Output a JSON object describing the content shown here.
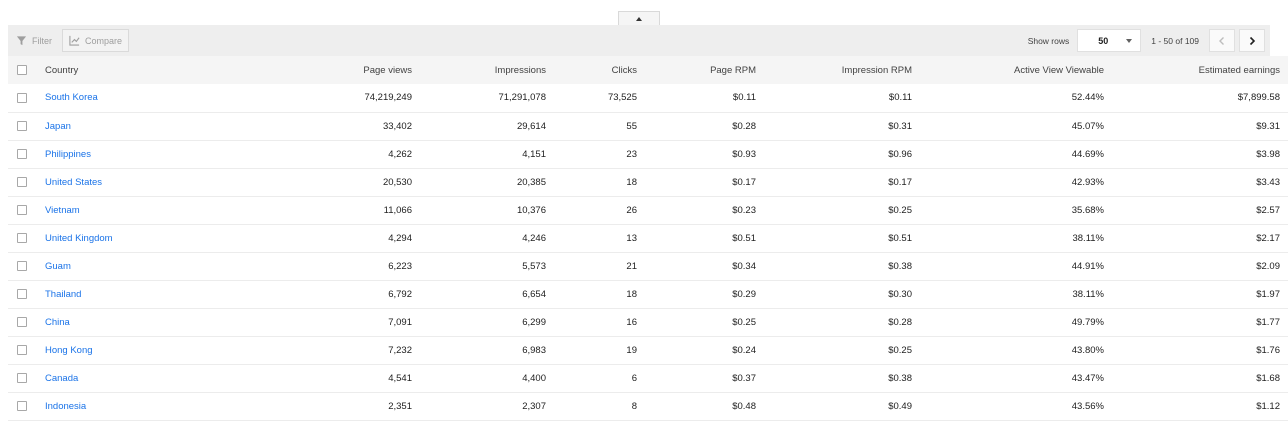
{
  "toolbar": {
    "filter_label": "Filter",
    "compare_label": "Compare",
    "show_rows_label": "Show rows",
    "rows_value": "50",
    "page_range": "1 - 50 of 109"
  },
  "table": {
    "columns": [
      "Country",
      "Page views",
      "Impressions",
      "Clicks",
      "Page RPM",
      "Impression RPM",
      "Active View Viewable",
      "Estimated earnings"
    ],
    "rows": [
      {
        "country": "South Korea",
        "page_views": "74,219,249",
        "impressions": "71,291,078",
        "clicks": "73,525",
        "page_rpm": "$0.11",
        "impression_rpm": "$0.11",
        "active_view": "52.44%",
        "earnings": "$7,899.58"
      },
      {
        "country": "Japan",
        "page_views": "33,402",
        "impressions": "29,614",
        "clicks": "55",
        "page_rpm": "$0.28",
        "impression_rpm": "$0.31",
        "active_view": "45.07%",
        "earnings": "$9.31"
      },
      {
        "country": "Philippines",
        "page_views": "4,262",
        "impressions": "4,151",
        "clicks": "23",
        "page_rpm": "$0.93",
        "impression_rpm": "$0.96",
        "active_view": "44.69%",
        "earnings": "$3.98"
      },
      {
        "country": "United States",
        "page_views": "20,530",
        "impressions": "20,385",
        "clicks": "18",
        "page_rpm": "$0.17",
        "impression_rpm": "$0.17",
        "active_view": "42.93%",
        "earnings": "$3.43"
      },
      {
        "country": "Vietnam",
        "page_views": "11,066",
        "impressions": "10,376",
        "clicks": "26",
        "page_rpm": "$0.23",
        "impression_rpm": "$0.25",
        "active_view": "35.68%",
        "earnings": "$2.57"
      },
      {
        "country": "United Kingdom",
        "page_views": "4,294",
        "impressions": "4,246",
        "clicks": "13",
        "page_rpm": "$0.51",
        "impression_rpm": "$0.51",
        "active_view": "38.11%",
        "earnings": "$2.17"
      },
      {
        "country": "Guam",
        "page_views": "6,223",
        "impressions": "5,573",
        "clicks": "21",
        "page_rpm": "$0.34",
        "impression_rpm": "$0.38",
        "active_view": "44.91%",
        "earnings": "$2.09"
      },
      {
        "country": "Thailand",
        "page_views": "6,792",
        "impressions": "6,654",
        "clicks": "18",
        "page_rpm": "$0.29",
        "impression_rpm": "$0.30",
        "active_view": "38.11%",
        "earnings": "$1.97"
      },
      {
        "country": "China",
        "page_views": "7,091",
        "impressions": "6,299",
        "clicks": "16",
        "page_rpm": "$0.25",
        "impression_rpm": "$0.28",
        "active_view": "49.79%",
        "earnings": "$1.77"
      },
      {
        "country": "Hong Kong",
        "page_views": "7,232",
        "impressions": "6,983",
        "clicks": "19",
        "page_rpm": "$0.24",
        "impression_rpm": "$0.25",
        "active_view": "43.80%",
        "earnings": "$1.76"
      },
      {
        "country": "Canada",
        "page_views": "4,541",
        "impressions": "4,400",
        "clicks": "6",
        "page_rpm": "$0.37",
        "impression_rpm": "$0.38",
        "active_view": "43.47%",
        "earnings": "$1.68"
      },
      {
        "country": "Indonesia",
        "page_views": "2,351",
        "impressions": "2,307",
        "clicks": "8",
        "page_rpm": "$0.48",
        "impression_rpm": "$0.49",
        "active_view": "43.56%",
        "earnings": "$1.12"
      }
    ]
  },
  "icons": {
    "collapse": "chevron-up-icon",
    "filter": "filter-icon",
    "compare": "compare-chart-icon",
    "dropdown": "dropdown-arrow-icon",
    "prev": "chevron-left-icon",
    "next": "chevron-right-icon"
  },
  "colors": {
    "link": "#1a73e8",
    "toolbar_bg": "#eeeeee",
    "header_bg": "#f5f5f5"
  }
}
